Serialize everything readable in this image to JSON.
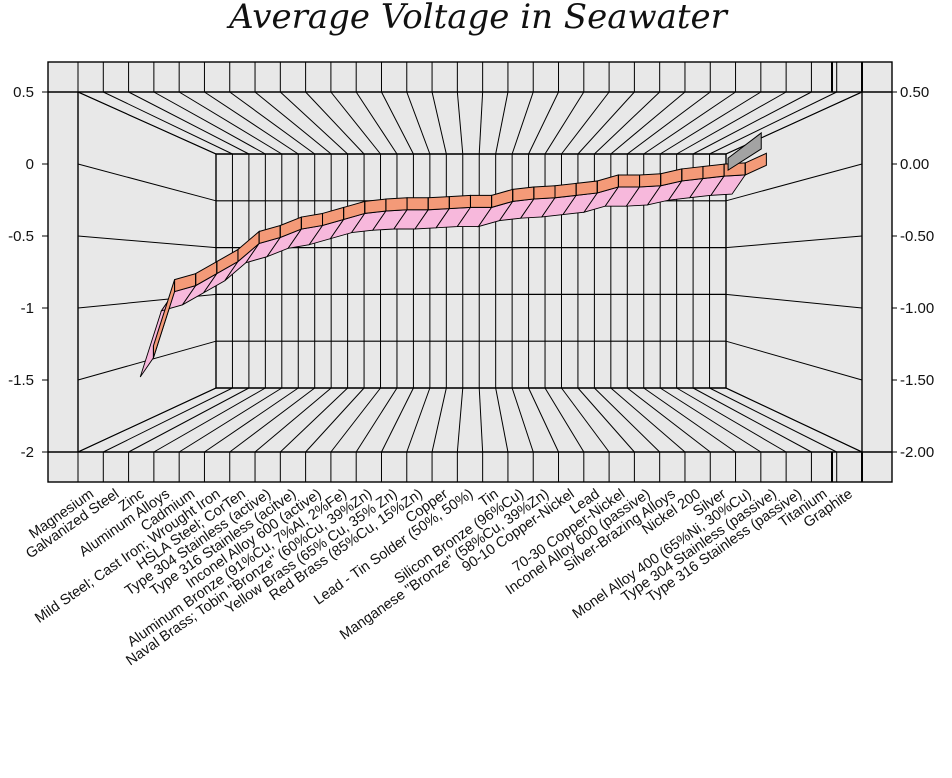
{
  "chart_data": {
    "type": "line",
    "title": "Average Voltage in Seawater",
    "xlabel": "",
    "ylabel": "",
    "ylim": [
      -2,
      0.5
    ],
    "left_ticks": [
      "0.5",
      "0",
      "-0.5",
      "-1",
      "-1.5",
      "-2"
    ],
    "left_tick_values": [
      0.5,
      0,
      -0.5,
      -1,
      -1.5,
      -2
    ],
    "right_ticks": [
      "0.50",
      "0.00",
      "-0.50",
      "-1.00",
      "-1.50",
      "-2.00"
    ],
    "grid": true,
    "style": "3d-ribbon",
    "colors": {
      "ribbon_top": "#f49a78",
      "ribbon_front": "#f7b8dc",
      "ribbon_side_end": "#a3a3a3",
      "wall": "#e8e8e8",
      "line": "#000000"
    },
    "categories": [
      "Magnesium",
      "Galvanized Steel",
      "Zinc",
      "Aluminum Alloys",
      "Cadmium",
      "Mild Steel;  Cast Iron;  Wrought Iron",
      "HSLA Steel;  CorTen",
      "Type 304 Stainless (active)",
      "Type 316 Stainless (acitve)",
      "Inconel Alloy 600 (active)",
      "Aluminum Bronze (91%Cu, 7%Al, 2%Fe)",
      "Naval Brass;  Tobin \"Bronze\" (60%Cu, 39%Zn)",
      "Yellow Brass  (65% Cu, 35% Zn)",
      "Red Brass  (85%Cu, 15%Zn)",
      "Copper",
      "Lead - Tin Solder  (50%, 50%)",
      "Tin",
      "Silicon Bronze  (96%Cu)",
      "Manganese \"Bronze\" (58%Cu, 39%Zn)",
      "90-10 Copper-Nickel",
      "Lead",
      "70-30 Copper-Nickel",
      "Inconel Alloy 600 (passive)",
      "Silver-Brazing Alloys",
      "Nickel 200",
      "Silver",
      "Monel Alloy 400 (65%Ni, 30%Cu)",
      "Type 304 Stainless (passive)",
      "Type 316 Stainless (passive)",
      "Titanium",
      "Graphite"
    ],
    "series": [
      {
        "values": [
          -1.6,
          -1.05,
          -1.0,
          -0.9,
          -0.8,
          -0.65,
          -0.6,
          -0.53,
          -0.5,
          -0.45,
          -0.4,
          -0.38,
          -0.37,
          -0.37,
          -0.36,
          -0.35,
          -0.35,
          -0.3,
          -0.28,
          -0.27,
          -0.25,
          -0.23,
          -0.18,
          -0.18,
          -0.17,
          -0.13,
          -0.11,
          -0.09,
          -0.08,
          0.0,
          0.1
        ]
      }
    ]
  }
}
